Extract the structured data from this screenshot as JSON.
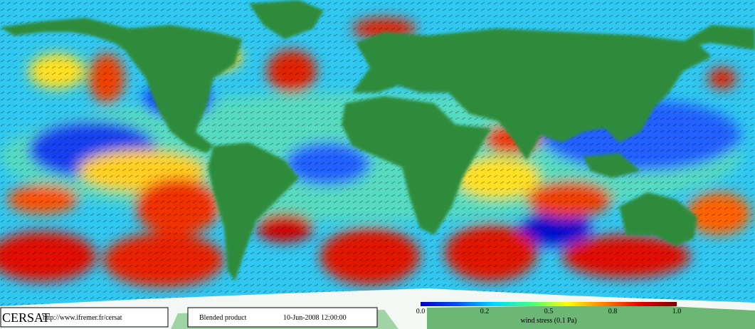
{
  "logo": "CERSAT",
  "url": "http://www.ifremer.fr/cersat",
  "product": "Blended product",
  "timestamp": "10-Jun-2008 12:00:00",
  "colorbar": {
    "label": "wind stress (0.1 Pa)",
    "ticks": [
      "0.0",
      "0.2",
      "0.5",
      "0.8",
      "1.0"
    ],
    "colors": [
      "#0000c8",
      "#0050ff",
      "#00d8ff",
      "#40ff80",
      "#ffff00",
      "#ff8000",
      "#e00000",
      "#800000"
    ]
  }
}
